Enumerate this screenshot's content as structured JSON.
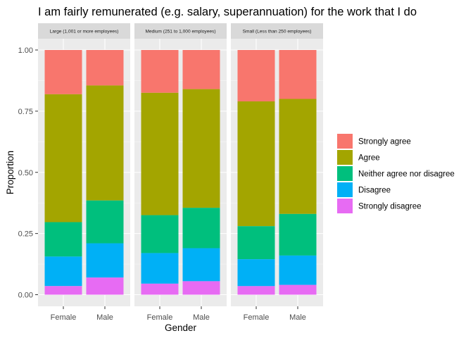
{
  "chart_data": {
    "type": "bar",
    "stacked": true,
    "position": "fill",
    "title": "I am fairly remunerated (e.g. salary, superannuation) for the work that I do",
    "xlabel": "Gender",
    "ylabel": "Proportion",
    "ylim": [
      0,
      1
    ],
    "yticks": [
      "0.00",
      "0.25",
      "0.50",
      "0.75",
      "1.00"
    ],
    "categories": [
      "Female",
      "Male"
    ],
    "legend_position": "right",
    "grid": true,
    "panel_background": "#ebebeb",
    "levels": [
      {
        "name": "Strongly agree",
        "color": "#F8766D"
      },
      {
        "name": "Agree",
        "color": "#A3A500"
      },
      {
        "name": "Neither agree nor disagree",
        "color": "#00BF7D"
      },
      {
        "name": "Disagree",
        "color": "#00B0F6"
      },
      {
        "name": "Strongly disagree",
        "color": "#E76BF3"
      }
    ],
    "facets": [
      {
        "label": "Large (1,001 or more employees)",
        "bars": [
          {
            "category": "Female",
            "values": [
              0.18,
              0.52,
              0.14,
              0.12,
              0.035
            ]
          },
          {
            "category": "Male",
            "values": [
              0.145,
              0.47,
              0.175,
              0.14,
              0.07
            ]
          }
        ]
      },
      {
        "label": "Medium (251 to 1,000 employees)",
        "bars": [
          {
            "category": "Female",
            "values": [
              0.175,
              0.5,
              0.155,
              0.125,
              0.045
            ]
          },
          {
            "category": "Male",
            "values": [
              0.16,
              0.485,
              0.165,
              0.135,
              0.055
            ]
          }
        ]
      },
      {
        "label": "Small (Less than 250 employees)",
        "bars": [
          {
            "category": "Female",
            "values": [
              0.21,
              0.51,
              0.135,
              0.11,
              0.035
            ]
          },
          {
            "category": "Male",
            "values": [
              0.2,
              0.47,
              0.17,
              0.12,
              0.04
            ]
          }
        ]
      }
    ]
  }
}
